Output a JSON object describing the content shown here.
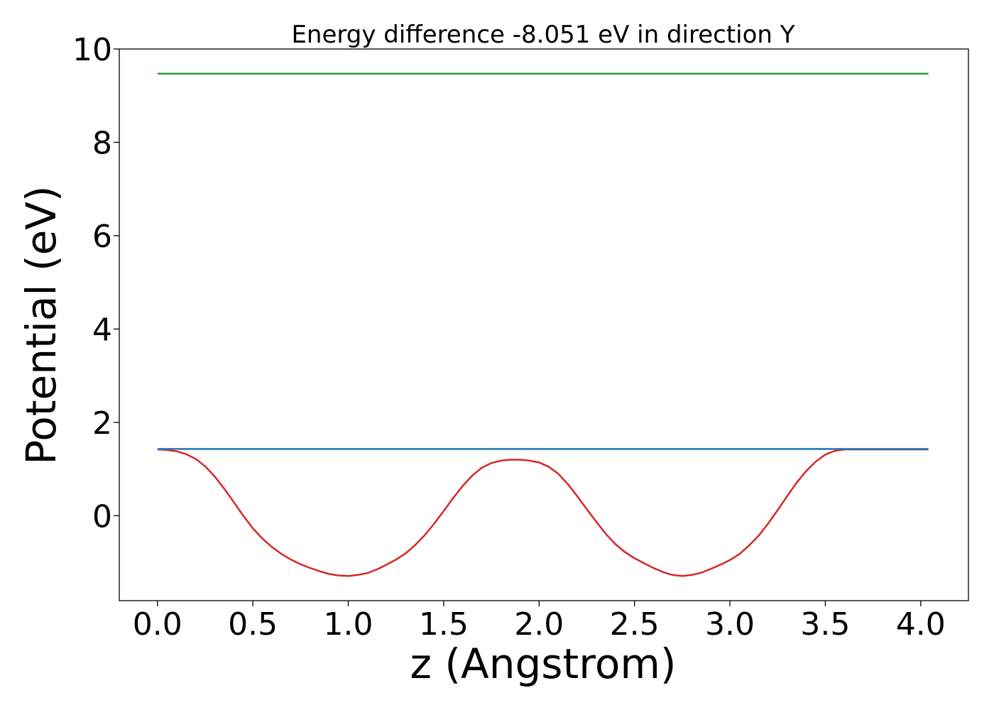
{
  "chart_data": {
    "type": "line",
    "title": "Energy difference -8.051 eV in direction Y",
    "xlabel": "z (Angstrom)",
    "ylabel": "Potential (eV)",
    "xlim": [
      -0.2,
      4.25
    ],
    "ylim": [
      -1.82,
      10.0
    ],
    "xticks": [
      0.0,
      0.5,
      1.0,
      1.5,
      2.0,
      2.5,
      3.0,
      3.5,
      4.0
    ],
    "xtick_labels": [
      "0.0",
      "0.5",
      "1.0",
      "1.5",
      "2.0",
      "2.5",
      "3.0",
      "3.5",
      "4.0"
    ],
    "yticks": [
      0,
      2,
      4,
      6,
      8,
      10
    ],
    "ytick_labels": [
      "0",
      "2",
      "4",
      "6",
      "8",
      "10"
    ],
    "grid": false,
    "series": [
      {
        "color": "#d62728",
        "x": [
          0.0,
          0.05,
          0.1,
          0.15,
          0.2,
          0.25,
          0.3,
          0.35,
          0.4,
          0.45,
          0.5,
          0.55,
          0.6,
          0.65,
          0.7,
          0.75,
          0.8,
          0.85,
          0.9,
          0.95,
          1.0,
          1.05,
          1.1,
          1.15,
          1.2,
          1.25,
          1.3,
          1.35,
          1.4,
          1.45,
          1.5,
          1.55,
          1.6,
          1.65,
          1.7,
          1.75,
          1.8,
          1.85,
          1.9,
          1.95,
          2.0,
          2.05,
          2.1,
          2.15,
          2.2,
          2.25,
          2.3,
          2.35,
          2.4,
          2.45,
          2.5,
          2.55,
          2.6,
          2.65,
          2.7,
          2.75,
          2.8,
          2.85,
          2.9,
          2.95,
          3.0,
          3.05,
          3.1,
          3.15,
          3.2,
          3.25,
          3.3,
          3.35,
          3.4,
          3.45,
          3.5,
          3.55,
          3.6,
          3.65,
          3.7,
          3.75,
          3.8,
          3.85,
          3.9,
          3.95,
          4.0,
          4.04
        ],
        "y": [
          1.42,
          1.41,
          1.38,
          1.32,
          1.22,
          1.06,
          0.84,
          0.58,
          0.29,
          0.0,
          -0.27,
          -0.49,
          -0.67,
          -0.82,
          -0.94,
          -1.04,
          -1.12,
          -1.19,
          -1.25,
          -1.28,
          -1.29,
          -1.27,
          -1.23,
          -1.15,
          -1.05,
          -0.94,
          -0.81,
          -0.63,
          -0.42,
          -0.17,
          0.1,
          0.38,
          0.64,
          0.86,
          1.03,
          1.13,
          1.18,
          1.2,
          1.2,
          1.18,
          1.14,
          1.05,
          0.9,
          0.68,
          0.42,
          0.14,
          -0.13,
          -0.39,
          -0.61,
          -0.78,
          -0.91,
          -1.02,
          -1.12,
          -1.21,
          -1.27,
          -1.29,
          -1.27,
          -1.22,
          -1.14,
          -1.05,
          -0.95,
          -0.82,
          -0.64,
          -0.43,
          -0.17,
          0.12,
          0.42,
          0.71,
          0.96,
          1.16,
          1.31,
          1.39,
          1.42,
          1.42,
          1.42,
          1.42,
          1.42,
          1.42,
          1.42,
          1.42,
          1.42,
          1.42
        ]
      },
      {
        "color": "#1f77b4",
        "x": [
          0.0,
          4.04
        ],
        "y": [
          1.43,
          1.43
        ]
      },
      {
        "color": "#2ca02c",
        "x": [
          0.0,
          4.04
        ],
        "y": [
          9.47,
          9.47
        ]
      }
    ]
  }
}
